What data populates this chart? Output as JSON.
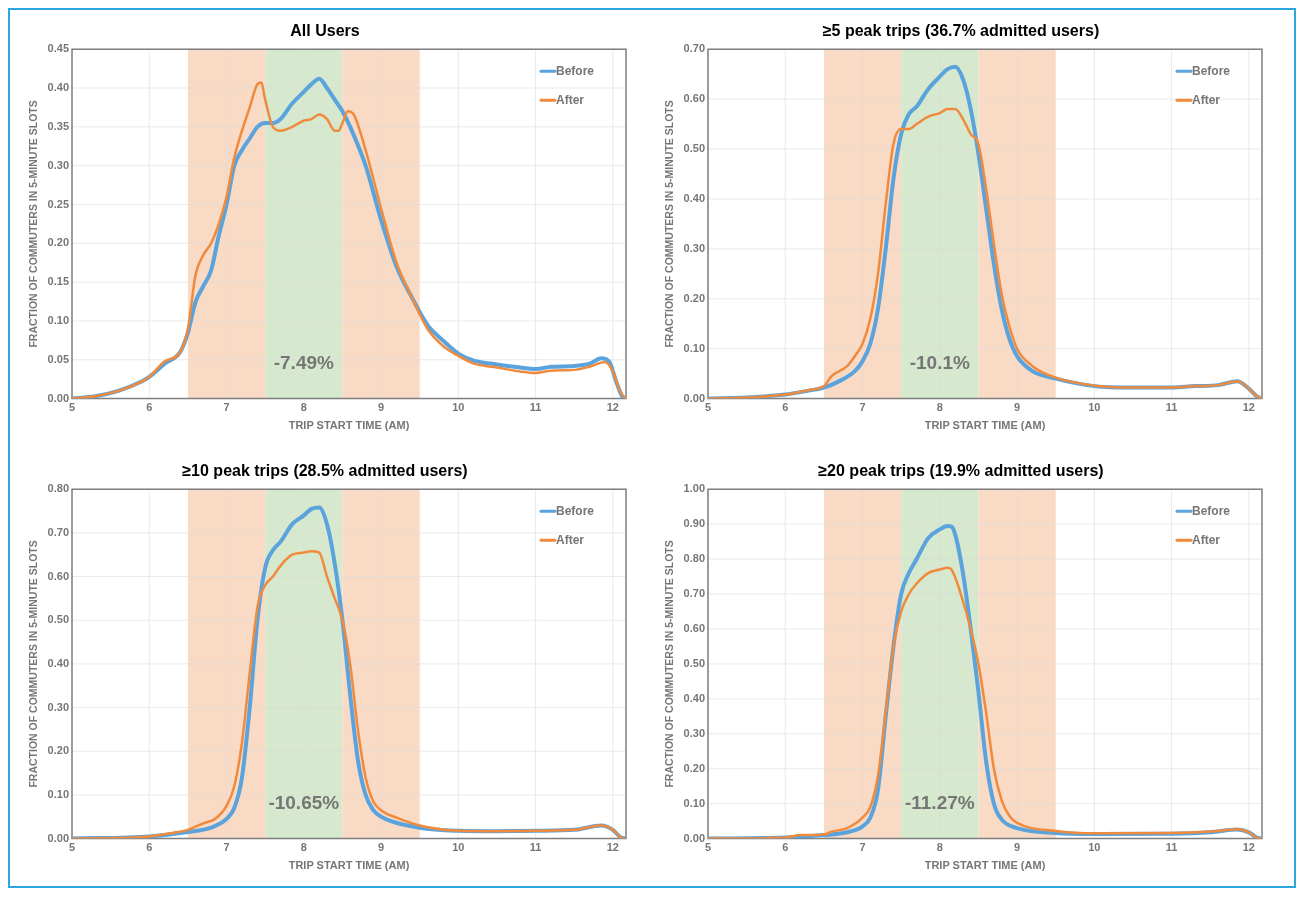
{
  "chart_data": [
    {
      "type": "line",
      "title": "All Users",
      "xlabel": "TRIP START TIME (AM)",
      "ylabel": "FRACTION OF COMMUTERS IN 5-MINUTE SLOTS",
      "xlim": [
        5,
        12.17
      ],
      "xticks": [
        5,
        6,
        7,
        8,
        9,
        10,
        11,
        12
      ],
      "ylim": [
        0,
        0.45
      ],
      "yticks": [
        {
          "value": 0,
          "label": "0.00"
        },
        {
          "value": 0.05,
          "label": "0.05"
        },
        {
          "value": 0.1,
          "label": "0.10"
        },
        {
          "value": 0.15,
          "label": "0.15"
        },
        {
          "value": 0.2,
          "label": "0.20"
        },
        {
          "value": 0.25,
          "label": "0.25"
        },
        {
          "value": 0.3,
          "label": "0.30"
        },
        {
          "value": 0.35,
          "label": "0.35"
        },
        {
          "value": 0.4,
          "label": "0.40"
        },
        {
          "value": 0.45,
          "label": "0.45"
        }
      ],
      "grid": true,
      "legend": "top right",
      "marker": "none",
      "line_style": "solid",
      "bands": [
        {
          "axis": "x",
          "from": 6.5,
          "to": 7.5,
          "color": "#f9dac4"
        },
        {
          "axis": "x",
          "from": 7.5,
          "to": 8.5,
          "color": "#d6e8cd"
        },
        {
          "axis": "x",
          "from": 8.5,
          "to": 9.5,
          "color": "#f9dac4"
        }
      ],
      "annotations": [
        "-7.49%"
      ],
      "series": [
        {
          "name": "Before",
          "color": "#5ba3dc",
          "x": [
            5,
            5.3,
            5.6,
            5.9,
            6.0,
            6.2,
            6.4,
            6.5,
            6.6,
            6.7,
            6.8,
            6.9,
            7.0,
            7.1,
            7.2,
            7.3,
            7.4,
            7.5,
            7.6,
            7.7,
            7.85,
            8.0,
            8.1,
            8.2,
            8.3,
            8.4,
            8.5,
            8.6,
            8.8,
            9.0,
            9.2,
            9.4,
            9.6,
            9.8,
            10.0,
            10.2,
            10.5,
            10.8,
            11.0,
            11.2,
            11.5,
            11.7,
            11.85,
            11.95,
            12.05,
            12.12,
            12.17
          ],
          "values": [
            0,
            0.003,
            0.01,
            0.022,
            0.028,
            0.045,
            0.06,
            0.085,
            0.125,
            0.145,
            0.165,
            0.21,
            0.25,
            0.3,
            0.32,
            0.335,
            0.35,
            0.355,
            0.355,
            0.36,
            0.38,
            0.395,
            0.405,
            0.412,
            0.4,
            0.385,
            0.37,
            0.35,
            0.3,
            0.23,
            0.17,
            0.13,
            0.095,
            0.075,
            0.058,
            0.049,
            0.044,
            0.04,
            0.038,
            0.041,
            0.042,
            0.045,
            0.052,
            0.048,
            0.02,
            0.003,
            0
          ]
        },
        {
          "name": "After",
          "color": "#f08a3c",
          "x": [
            5,
            5.3,
            5.6,
            5.9,
            6.0,
            6.2,
            6.4,
            6.5,
            6.6,
            6.7,
            6.8,
            6.9,
            7.0,
            7.1,
            7.2,
            7.3,
            7.4,
            7.45,
            7.5,
            7.6,
            7.7,
            7.85,
            8.0,
            8.1,
            8.2,
            8.3,
            8.4,
            8.45,
            8.5,
            8.57,
            8.65,
            8.8,
            9.0,
            9.2,
            9.4,
            9.6,
            9.8,
            10.0,
            10.2,
            10.5,
            10.8,
            11.0,
            11.2,
            11.5,
            11.7,
            11.9,
            12.0,
            12.1,
            12.17
          ],
          "values": [
            0,
            0.003,
            0.01,
            0.022,
            0.028,
            0.048,
            0.06,
            0.09,
            0.16,
            0.185,
            0.2,
            0.225,
            0.26,
            0.31,
            0.345,
            0.375,
            0.405,
            0.407,
            0.385,
            0.35,
            0.345,
            0.35,
            0.358,
            0.36,
            0.366,
            0.36,
            0.345,
            0.345,
            0.355,
            0.37,
            0.365,
            0.32,
            0.245,
            0.175,
            0.13,
            0.09,
            0.068,
            0.055,
            0.045,
            0.04,
            0.035,
            0.033,
            0.036,
            0.037,
            0.041,
            0.047,
            0.035,
            0.008,
            0
          ]
        }
      ]
    },
    {
      "type": "line",
      "title": "≥5 peak trips (36.7% admitted users)",
      "xlabel": "TRIP START TIME (AM)",
      "ylabel": "FRACTION OF COMMUTERS IN 5-MINUTE SLOTS",
      "xlim": [
        5,
        12.17
      ],
      "xticks": [
        5,
        6,
        7,
        8,
        9,
        10,
        11,
        12
      ],
      "ylim": [
        0,
        0.7
      ],
      "yticks": [
        {
          "value": 0,
          "label": "0.00"
        },
        {
          "value": 0.1,
          "label": "0.10"
        },
        {
          "value": 0.2,
          "label": "0.20"
        },
        {
          "value": 0.3,
          "label": "0.30"
        },
        {
          "value": 0.4,
          "label": "0.40"
        },
        {
          "value": 0.5,
          "label": "0.50"
        },
        {
          "value": 0.6,
          "label": "0.60"
        },
        {
          "value": 0.7,
          "label": "0.70"
        }
      ],
      "grid": true,
      "legend": "top right",
      "marker": "none",
      "line_style": "solid",
      "bands": [
        {
          "axis": "x",
          "from": 6.5,
          "to": 7.5,
          "color": "#f9dac4"
        },
        {
          "axis": "x",
          "from": 7.5,
          "to": 8.5,
          "color": "#d6e8cd"
        },
        {
          "axis": "x",
          "from": 8.5,
          "to": 9.5,
          "color": "#f9dac4"
        }
      ],
      "annotations": [
        "-10.1%"
      ],
      "series": [
        {
          "name": "Before",
          "color": "#5ba3dc",
          "x": [
            5,
            5.5,
            6,
            6.3,
            6.5,
            6.7,
            6.9,
            7.0,
            7.1,
            7.2,
            7.3,
            7.4,
            7.5,
            7.6,
            7.7,
            7.85,
            8.0,
            8.1,
            8.2,
            8.3,
            8.4,
            8.5,
            8.6,
            8.7,
            8.8,
            8.9,
            9.0,
            9.2,
            9.5,
            10,
            10.5,
            11,
            11.3,
            11.6,
            11.85,
            12.0,
            12.1,
            12.17
          ],
          "values": [
            0,
            0.002,
            0.008,
            0.016,
            0.022,
            0.035,
            0.055,
            0.075,
            0.11,
            0.18,
            0.3,
            0.44,
            0.53,
            0.57,
            0.585,
            0.62,
            0.645,
            0.66,
            0.665,
            0.64,
            0.58,
            0.49,
            0.38,
            0.27,
            0.18,
            0.12,
            0.085,
            0.055,
            0.04,
            0.025,
            0.022,
            0.022,
            0.025,
            0.027,
            0.035,
            0.02,
            0.005,
            0
          ]
        },
        {
          "name": "After",
          "color": "#f08a3c",
          "x": [
            5,
            5.5,
            6,
            6.3,
            6.5,
            6.6,
            6.8,
            6.9,
            7.0,
            7.1,
            7.2,
            7.3,
            7.4,
            7.5,
            7.6,
            7.7,
            7.85,
            8.0,
            8.1,
            8.2,
            8.3,
            8.4,
            8.5,
            8.6,
            8.7,
            8.8,
            8.9,
            9.0,
            9.2,
            9.5,
            10,
            10.5,
            11,
            11.3,
            11.6,
            11.85,
            12.0,
            12.1,
            12.17
          ],
          "values": [
            0,
            0.002,
            0.008,
            0.017,
            0.025,
            0.045,
            0.065,
            0.085,
            0.11,
            0.16,
            0.25,
            0.39,
            0.51,
            0.54,
            0.54,
            0.55,
            0.565,
            0.572,
            0.58,
            0.58,
            0.56,
            0.53,
            0.51,
            0.42,
            0.31,
            0.21,
            0.145,
            0.1,
            0.065,
            0.042,
            0.026,
            0.022,
            0.022,
            0.025,
            0.027,
            0.035,
            0.02,
            0.005,
            0
          ]
        }
      ]
    },
    {
      "type": "line",
      "title": "≥10 peak trips (28.5% admitted users)",
      "xlabel": "TRIP START TIME (AM)",
      "ylabel": "FRACTION OF COMMUTERS IN 5-MINUTE SLOTS",
      "xlim": [
        5,
        12.17
      ],
      "xticks": [
        5,
        6,
        7,
        8,
        9,
        10,
        11,
        12
      ],
      "ylim": [
        0,
        0.8
      ],
      "yticks": [
        {
          "value": 0,
          "label": "0.00"
        },
        {
          "value": 0.1,
          "label": "0.10"
        },
        {
          "value": 0.2,
          "label": "0.20"
        },
        {
          "value": 0.3,
          "label": "0.30"
        },
        {
          "value": 0.4,
          "label": "0.40"
        },
        {
          "value": 0.5,
          "label": "0.50"
        },
        {
          "value": 0.6,
          "label": "0.60"
        },
        {
          "value": 0.7,
          "label": "0.70"
        },
        {
          "value": 0.8,
          "label": "0.80"
        }
      ],
      "grid": true,
      "legend": "top right",
      "marker": "none",
      "line_style": "solid",
      "bands": [
        {
          "axis": "x",
          "from": 6.5,
          "to": 7.5,
          "color": "#f9dac4"
        },
        {
          "axis": "x",
          "from": 7.5,
          "to": 8.5,
          "color": "#d6e8cd"
        },
        {
          "axis": "x",
          "from": 8.5,
          "to": 9.5,
          "color": "#f9dac4"
        }
      ],
      "annotations": [
        "-10.65%"
      ],
      "series": [
        {
          "name": "Before",
          "color": "#5ba3dc",
          "x": [
            5,
            6,
            6.5,
            6.8,
            7.0,
            7.1,
            7.2,
            7.3,
            7.4,
            7.5,
            7.6,
            7.7,
            7.85,
            8.0,
            8.1,
            8.2,
            8.3,
            8.4,
            8.5,
            8.6,
            8.7,
            8.8,
            8.9,
            9.0,
            9.5,
            10,
            10.5,
            11,
            11.5,
            11.85,
            12.0,
            12.1,
            12.17
          ],
          "values": [
            0,
            0.005,
            0.015,
            0.025,
            0.045,
            0.07,
            0.14,
            0.3,
            0.5,
            0.62,
            0.66,
            0.68,
            0.72,
            0.74,
            0.755,
            0.758,
            0.72,
            0.63,
            0.5,
            0.33,
            0.18,
            0.1,
            0.065,
            0.05,
            0.025,
            0.018,
            0.017,
            0.018,
            0.02,
            0.03,
            0.02,
            0.003,
            0
          ]
        },
        {
          "name": "After",
          "color": "#f08a3c",
          "x": [
            5,
            6,
            6.3,
            6.5,
            6.7,
            6.85,
            7.0,
            7.1,
            7.2,
            7.3,
            7.4,
            7.5,
            7.6,
            7.7,
            7.85,
            8.0,
            8.1,
            8.2,
            8.3,
            8.4,
            8.5,
            8.6,
            8.7,
            8.8,
            8.9,
            9.0,
            9.2,
            9.5,
            10,
            10.5,
            11,
            11.5,
            11.85,
            12.0,
            12.1,
            12.17
          ],
          "values": [
            0,
            0.005,
            0.013,
            0.02,
            0.035,
            0.045,
            0.075,
            0.12,
            0.22,
            0.38,
            0.53,
            0.58,
            0.6,
            0.625,
            0.65,
            0.655,
            0.658,
            0.655,
            0.6,
            0.55,
            0.5,
            0.4,
            0.25,
            0.14,
            0.085,
            0.065,
            0.048,
            0.03,
            0.018,
            0.017,
            0.018,
            0.02,
            0.03,
            0.02,
            0.003,
            0
          ]
        }
      ]
    },
    {
      "type": "line",
      "title": "≥20 peak trips (19.9% admitted users)",
      "xlabel": "TRIP START TIME (AM)",
      "ylabel": "FRACTION OF COMMUTERS IN 5-MINUTE SLOTS",
      "xlim": [
        5,
        12.17
      ],
      "xticks": [
        5,
        6,
        7,
        8,
        9,
        10,
        11,
        12
      ],
      "ylim": [
        0,
        1
      ],
      "yticks": [
        {
          "value": 0,
          "label": "0.00"
        },
        {
          "value": 0.1,
          "label": "0.10"
        },
        {
          "value": 0.2,
          "label": "0.20"
        },
        {
          "value": 0.3,
          "label": "0.30"
        },
        {
          "value": 0.4,
          "label": "0.40"
        },
        {
          "value": 0.5,
          "label": "0.50"
        },
        {
          "value": 0.6,
          "label": "0.60"
        },
        {
          "value": 0.7,
          "label": "0.70"
        },
        {
          "value": 0.8,
          "label": "0.80"
        },
        {
          "value": 0.9,
          "label": "0.90"
        },
        {
          "value": 1,
          "label": "1.00"
        }
      ],
      "grid": true,
      "legend": "top right",
      "marker": "none",
      "line_style": "solid",
      "bands": [
        {
          "axis": "x",
          "from": 6.5,
          "to": 7.5,
          "color": "#f9dac4"
        },
        {
          "axis": "x",
          "from": 7.5,
          "to": 8.5,
          "color": "#d6e8cd"
        },
        {
          "axis": "x",
          "from": 8.5,
          "to": 9.5,
          "color": "#f9dac4"
        }
      ],
      "annotations": [
        "-11.27%"
      ],
      "series": [
        {
          "name": "Before",
          "color": "#5ba3dc",
          "x": [
            5,
            6,
            6.5,
            6.8,
            7.0,
            7.1,
            7.2,
            7.3,
            7.4,
            7.5,
            7.6,
            7.7,
            7.85,
            8.0,
            8.1,
            8.15,
            8.2,
            8.3,
            8.4,
            8.5,
            8.6,
            8.7,
            8.8,
            9.0,
            9.5,
            10,
            11,
            11.5,
            11.85,
            12,
            12.1,
            12.17
          ],
          "values": [
            0,
            0.003,
            0.01,
            0.018,
            0.035,
            0.06,
            0.14,
            0.35,
            0.55,
            0.7,
            0.76,
            0.8,
            0.86,
            0.885,
            0.895,
            0.893,
            0.87,
            0.76,
            0.6,
            0.42,
            0.22,
            0.1,
            0.055,
            0.03,
            0.016,
            0.013,
            0.014,
            0.018,
            0.026,
            0.018,
            0.003,
            0
          ]
        },
        {
          "name": "After",
          "color": "#f08a3c",
          "x": [
            5,
            6,
            6.2,
            6.5,
            6.6,
            6.8,
            7.0,
            7.1,
            7.2,
            7.3,
            7.4,
            7.5,
            7.6,
            7.7,
            7.85,
            8.0,
            8.1,
            8.15,
            8.3,
            8.4,
            8.5,
            8.6,
            8.7,
            8.8,
            8.9,
            9.0,
            9.5,
            10,
            11,
            11.5,
            11.85,
            12,
            12.1,
            12.17
          ],
          "values": [
            0,
            0.003,
            0.01,
            0.012,
            0.02,
            0.03,
            0.06,
            0.09,
            0.18,
            0.36,
            0.55,
            0.65,
            0.7,
            0.73,
            0.76,
            0.77,
            0.775,
            0.77,
            0.68,
            0.6,
            0.5,
            0.36,
            0.2,
            0.11,
            0.065,
            0.045,
            0.022,
            0.015,
            0.016,
            0.02,
            0.027,
            0.018,
            0.003,
            0
          ]
        }
      ]
    }
  ]
}
